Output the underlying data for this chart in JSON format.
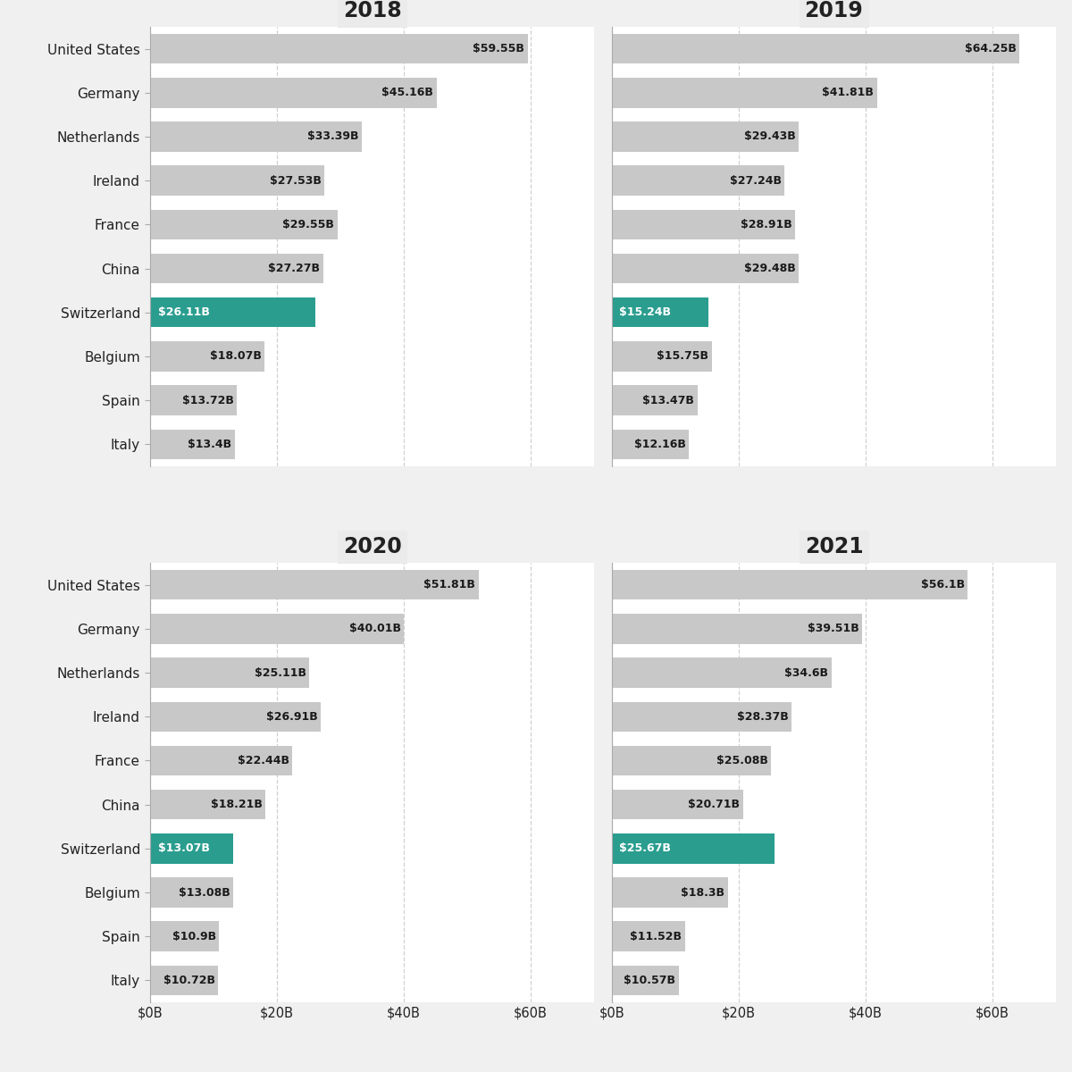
{
  "years": [
    "2018",
    "2019",
    "2020",
    "2021"
  ],
  "categories": [
    "United States",
    "Germany",
    "Netherlands",
    "Ireland",
    "France",
    "China",
    "Switzerland",
    "Belgium",
    "Spain",
    "Italy"
  ],
  "values": {
    "2018": [
      59.55,
      45.16,
      33.39,
      27.53,
      29.55,
      27.27,
      26.11,
      18.07,
      13.72,
      13.4
    ],
    "2019": [
      64.25,
      41.81,
      29.43,
      27.24,
      28.91,
      29.48,
      15.24,
      15.75,
      13.47,
      12.16
    ],
    "2020": [
      51.81,
      40.01,
      25.11,
      26.91,
      22.44,
      18.21,
      13.07,
      13.08,
      10.9,
      10.72
    ],
    "2021": [
      56.1,
      39.51,
      34.6,
      28.37,
      25.08,
      20.71,
      25.67,
      18.3,
      11.52,
      10.57
    ]
  },
  "labels": {
    "2018": [
      "$59.55B",
      "$45.16B",
      "$33.39B",
      "$27.53B",
      "$29.55B",
      "$27.27B",
      "$26.11B",
      "$18.07B",
      "$13.72B",
      "$13.4B"
    ],
    "2019": [
      "$64.25B",
      "$41.81B",
      "$29.43B",
      "$27.24B",
      "$28.91B",
      "$29.48B",
      "$15.24B",
      "$15.75B",
      "$13.47B",
      "$12.16B"
    ],
    "2020": [
      "$51.81B",
      "$40.01B",
      "$25.11B",
      "$26.91B",
      "$22.44B",
      "$18.21B",
      "$13.07B",
      "$13.08B",
      "$10.9B",
      "$10.72B"
    ],
    "2021": [
      "$56.1B",
      "$39.51B",
      "$34.6B",
      "$28.37B",
      "$25.08B",
      "$20.71B",
      "$25.67B",
      "$18.3B",
      "$11.52B",
      "$10.57B"
    ]
  },
  "highlight_country": "Switzerland",
  "highlight_color": "#2a9d8f",
  "normal_color": "#c8c8c8",
  "background_color": "#f0f0f0",
  "plot_bg_color": "#ffffff",
  "title_bg_color": "#ebebeb",
  "xlim": [
    0,
    70
  ],
  "xtick_values": [
    0,
    20,
    40,
    60
  ],
  "xtick_labels": [
    "$0B",
    "$20B",
    "$40B",
    "$60B"
  ],
  "bar_height": 0.68,
  "label_fontsize": 9,
  "ylabel_fontsize": 11,
  "title_fontsize": 17
}
